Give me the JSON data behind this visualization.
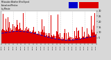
{
  "background_color": "#d8d8d8",
  "plot_bg_color": "#ffffff",
  "bar_color": "#dd0000",
  "median_color": "#0000cc",
  "median_style": "--",
  "n_points": 1440,
  "ylim": [
    0,
    30
  ],
  "ytick_values": [
    5,
    10,
    15,
    20,
    25,
    30
  ],
  "legend_actual_color": "#dd0000",
  "legend_median_color": "#0000cc",
  "vline_color": "#aaaaaa",
  "vline_style": ":",
  "seed": 12345,
  "n_vlines": 7
}
